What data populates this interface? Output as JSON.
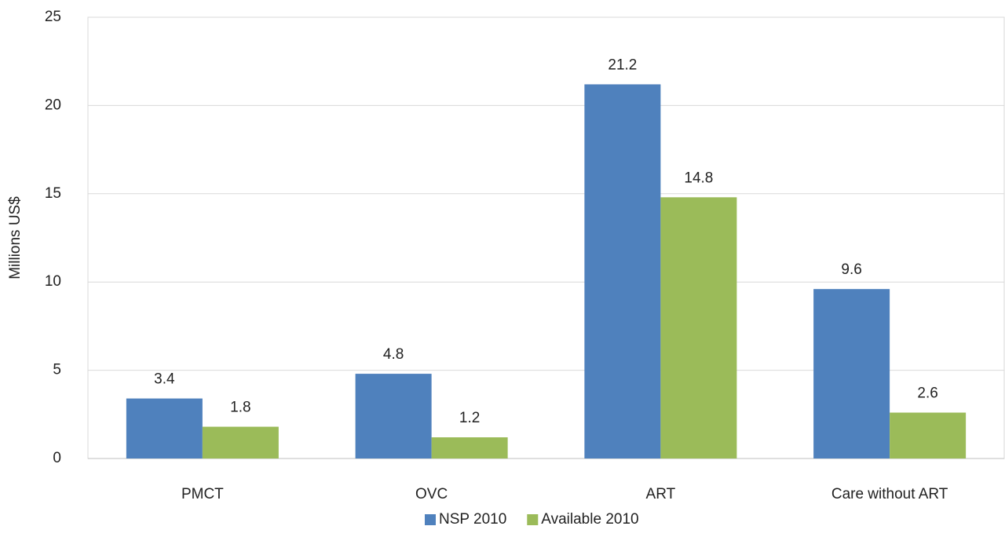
{
  "chart_data": {
    "type": "bar",
    "y_label": "Millions US$",
    "categories": [
      "PMCT",
      "OVC",
      "ART",
      "Care without ART"
    ],
    "series": [
      {
        "name": "NSP 2010",
        "color": "#4f81bd",
        "values": [
          3.4,
          4.8,
          21.2,
          9.6
        ]
      },
      {
        "name": "Available 2010",
        "color": "#9bbb59",
        "values": [
          1.8,
          1.2,
          14.8,
          2.6
        ]
      }
    ],
    "ylim": [
      0,
      25
    ],
    "yticks": [
      0,
      5,
      10,
      15,
      20,
      25
    ],
    "grid": true,
    "legend": "bottom"
  }
}
